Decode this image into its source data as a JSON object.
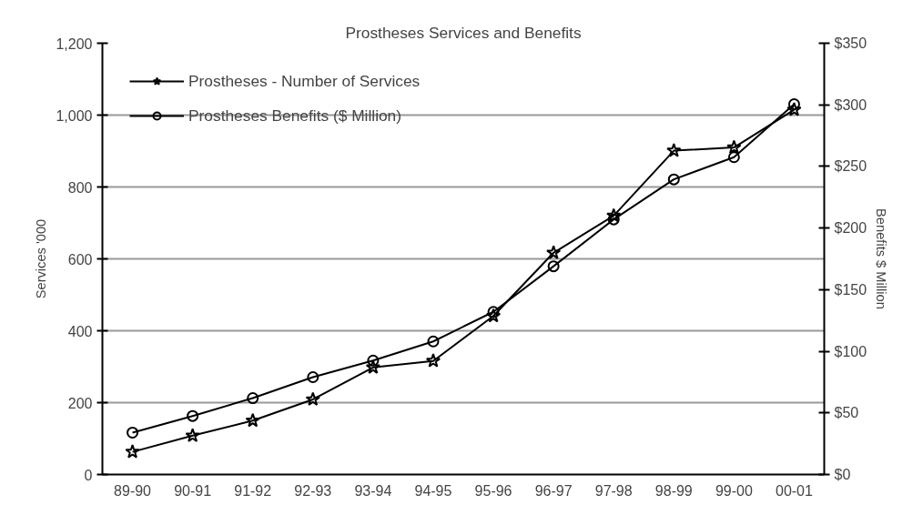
{
  "chart_data": {
    "type": "line",
    "title": "Prostheses Services and Benefits",
    "categories": [
      "89-90",
      "90-91",
      "91-92",
      "92-93",
      "93-94",
      "94-95",
      "95-96",
      "96-97",
      "97-98",
      "98-99",
      "99-00",
      "00-01"
    ],
    "ylabel": "Services '000",
    "y2label": "Benefits $ Million",
    "series": [
      {
        "name": "Prostheses - Number of Services",
        "color": "#000000",
        "marker": "star",
        "values": [
          63,
          108,
          150,
          209,
          298,
          316,
          441,
          617,
          720,
          901,
          910,
          1015
        ]
      },
      {
        "name": "Prostheses Benefits ($ Million)",
        "color": "#000000",
        "marker": "circle",
        "axis": "y2",
        "values": [
          34,
          47.5,
          62,
          79,
          92.5,
          108,
          132,
          169,
          207,
          239.5,
          257.5,
          300.5
        ]
      }
    ],
    "ylim": [
      0,
      1200
    ],
    "yticks": [
      0,
      200,
      400,
      600,
      800,
      {
        "value": 1000,
        "label": "1,000"
      },
      {
        "value": 1200,
        "label": "1,200"
      }
    ],
    "y2lim": [
      0,
      350
    ],
    "y2ticks": [
      {
        "value": 0,
        "label": "$0"
      },
      {
        "value": 50,
        "label": "$50"
      },
      {
        "value": 100,
        "label": "$100"
      },
      {
        "value": 150,
        "label": "$150"
      },
      {
        "value": 200,
        "label": "$200"
      },
      {
        "value": 250,
        "label": "$250"
      },
      {
        "value": 300,
        "label": "$300"
      },
      {
        "value": 350,
        "label": "$350"
      }
    ],
    "grid": "y",
    "legend": "top left",
    "line_style": "solid"
  }
}
